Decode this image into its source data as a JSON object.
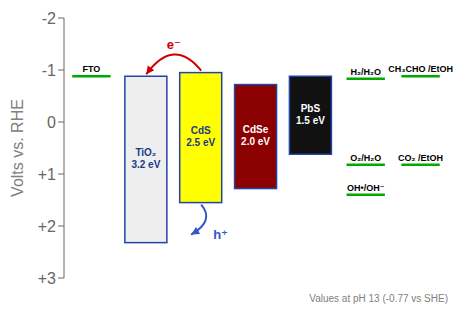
{
  "chart_data": {
    "type": "floating_bar",
    "ylabel": "Volts vs. RHE",
    "ylim": [
      3,
      -2
    ],
    "yticks": [
      -2,
      -1,
      0,
      {
        "value": 1,
        "label": "+1"
      },
      {
        "value": 2,
        "label": "+2"
      },
      {
        "value": 3,
        "label": "+3"
      }
    ],
    "categories": [
      "TiO₂\n3.2 eV",
      "CdS\n2.5 eV",
      "CdSe\n2.0 eV",
      "PbS\n1.5 eV"
    ],
    "values": [
      [
        -0.88,
        2.32
      ],
      [
        -0.95,
        1.55
      ],
      [
        -0.72,
        1.28
      ],
      [
        -0.88,
        0.62
      ]
    ],
    "colors": [
      "#eeeeee",
      "#ffff00",
      "#8b0000",
      "#111111"
    ],
    "tick_labels": "y",
    "grid": false,
    "reference_lines": {
      "color": "#00aa00",
      "columns": [
        [
          {
            "label": "FTO",
            "y": -0.88
          }
        ],
        [
          {
            "label": "H₂/H₂O",
            "y": -0.83
          },
          {
            "label": "O₂/H₂O",
            "y": 0.82
          },
          {
            "label": "OH•/OH⁻",
            "y": 1.4
          }
        ],
        [
          {
            "label": "CH₃CHO /EtOH",
            "y": -0.88
          },
          {
            "label": "CO₂ /EtOH",
            "y": 0.82
          }
        ]
      ]
    },
    "annotations": [
      {
        "text": "e⁻",
        "from": "CdS\n2.5 eV",
        "to": "TiO₂\n3.2 eV",
        "color": "#cc0000"
      },
      {
        "text": "h⁺",
        "from": "CdS\n2.5 eV",
        "color": "#3355cc"
      }
    ],
    "note": "Values at pH 13 (-0.77 vs SHE)"
  }
}
